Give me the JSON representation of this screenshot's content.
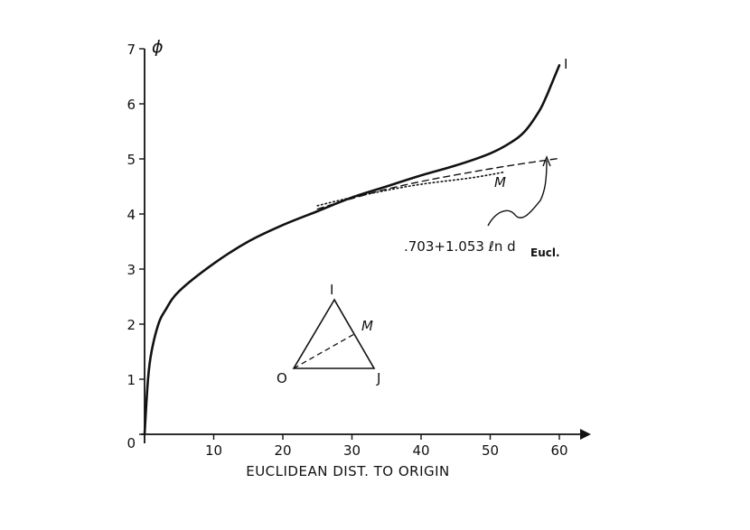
{
  "chart_data": {
    "type": "line",
    "xlabel": "EUCLIDEAN DIST. TO ORIGIN",
    "ylabel": "ϕ",
    "xlim": [
      0,
      65
    ],
    "ylim": [
      0,
      7
    ],
    "x_ticks": [
      0,
      10,
      20,
      30,
      40,
      50,
      60
    ],
    "x_tick_labels": [
      "",
      "10",
      "20",
      "30",
      "40",
      "50",
      "60"
    ],
    "y_ticks": [
      0,
      1,
      2,
      3,
      4,
      5,
      6,
      7
    ],
    "y_tick_labels": [
      "0",
      "1",
      "2",
      "3",
      "4",
      "5",
      "6",
      "7"
    ],
    "grid": false,
    "series": [
      {
        "name": "I",
        "style": "solid",
        "x": [
          0,
          0.5,
          1,
          2,
          3,
          5,
          10,
          15,
          20,
          25,
          30,
          35,
          40,
          45,
          50,
          53,
          55,
          57,
          58,
          59,
          60
        ],
        "y": [
          0,
          1.0,
          1.5,
          2.0,
          2.25,
          2.6,
          3.1,
          3.5,
          3.8,
          4.05,
          4.3,
          4.5,
          4.7,
          4.88,
          5.1,
          5.3,
          5.5,
          5.85,
          6.1,
          6.4,
          6.7
        ]
      },
      {
        "name": ".703+1.053 ℓn d",
        "subscript": "Eucl.",
        "style": "dashed",
        "x": [
          25,
          30,
          35,
          40,
          45,
          50,
          55,
          60
        ],
        "y": [
          4.09,
          4.28,
          4.45,
          4.59,
          4.71,
          4.82,
          4.92,
          5.01
        ]
      },
      {
        "name": "M",
        "style": "dotted",
        "x": [
          25,
          30,
          35,
          40,
          45,
          48,
          52
        ],
        "y": [
          4.15,
          4.3,
          4.43,
          4.54,
          4.62,
          4.67,
          4.76
        ]
      }
    ],
    "annotations": {
      "formula_main": ".703+1.053 ℓn d",
      "formula_sub": "Eucl.",
      "inset_vertices": [
        "I",
        "M",
        "O",
        "J"
      ]
    }
  }
}
